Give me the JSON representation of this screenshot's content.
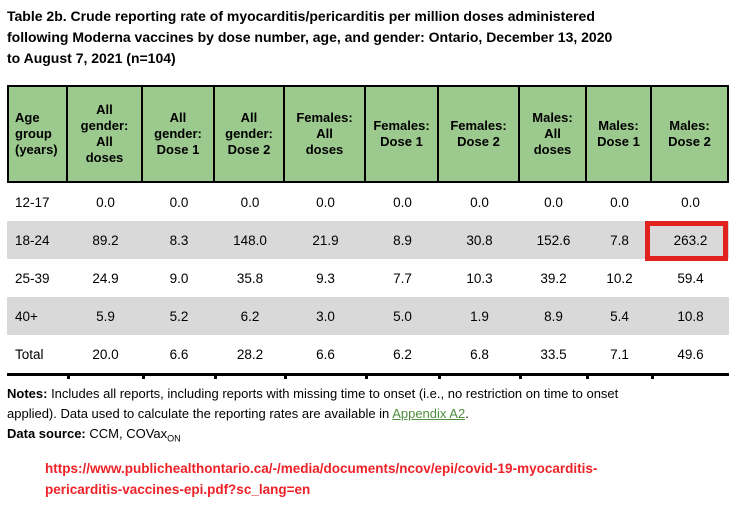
{
  "title": "Table 2b. Crude reporting rate of myocarditis/pericarditis per million doses administered\nfollowing Moderna vaccines by dose number, age, and gender: Ontario, December 13, 2020\nto August 7, 2021 (n=104)",
  "table": {
    "columns": [
      "Age\ngroup\n(years)",
      "All\ngender:\nAll\ndoses",
      "All\ngender:\nDose 1",
      "All\ngender:\nDose 2",
      "Females:\nAll\ndoses",
      "Females:\nDose 1",
      "Females:\nDose 2",
      "Males:\nAll\ndoses",
      "Males:\nDose 1",
      "Males:\nDose 2"
    ],
    "rows": [
      {
        "label": "12-17",
        "values": [
          "0.0",
          "0.0",
          "0.0",
          "0.0",
          "0.0",
          "0.0",
          "0.0",
          "0.0",
          "0.0"
        ]
      },
      {
        "label": "18-24",
        "values": [
          "89.2",
          "8.3",
          "148.0",
          "21.9",
          "8.9",
          "30.8",
          "152.6",
          "7.8",
          "263.2"
        ]
      },
      {
        "label": "25-39",
        "values": [
          "24.9",
          "9.0",
          "35.8",
          "9.3",
          "7.7",
          "10.3",
          "39.2",
          "10.2",
          "59.4"
        ]
      },
      {
        "label": "40+",
        "values": [
          "5.9",
          "5.2",
          "6.2",
          "3.0",
          "5.0",
          "1.9",
          "8.9",
          "5.4",
          "10.8"
        ]
      },
      {
        "label": "Total",
        "values": [
          "20.0",
          "6.6",
          "28.2",
          "6.6",
          "6.2",
          "6.8",
          "33.5",
          "7.1",
          "49.6"
        ]
      }
    ],
    "highlighted_cell": {
      "row": "18-24",
      "column": "Males: Dose 2",
      "value": "263.2"
    }
  },
  "notes": {
    "label": "Notes:",
    "text": " Includes all reports, including reports with missing time to onset (i.e., no restriction on time to onset\napplied). Data used to calculate the reporting rates are available in ",
    "appendix_link": "Appendix A2",
    "after_link": "."
  },
  "data_source": {
    "label": "Data source:",
    "text": " CCM, COVax",
    "subscript": "ON"
  },
  "source_url": "https://www.publichealthontario.ca/-/media/documents/ncov/epi/covid-19-myocarditis-\npericarditis-vaccines-epi.pdf?sc_lang=en",
  "colors": {
    "header_green": "#9cc98e",
    "shaded_row_grey": "#d9d9d9",
    "highlight_red": "#e0231c",
    "url_red": "#ed2228",
    "link_green": "#4e8e3e"
  }
}
